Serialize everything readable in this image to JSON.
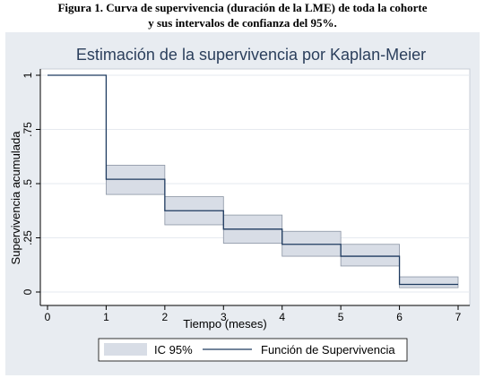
{
  "figure_caption": {
    "line1": "Figura 1. Curva de supervivencia (duración de la LME) de toda la cohorte",
    "line2": "y sus intervalos de confianza del 95%."
  },
  "colors": {
    "panel_background": "#e8ecf1",
    "plot_background": "#ffffff",
    "grid": "#e6eaef",
    "line": "#1e3a5f",
    "ci_fill": "#d8dde6",
    "ci_stroke": "#8a94a3",
    "title": "#2b3f5c"
  },
  "chart_data": {
    "type": "line",
    "step": true,
    "title": "Estimación de la supervivencia por Kaplan-Meier",
    "xlabel": "Tiempo (meses)",
    "ylabel": "Supervivencia acumulada",
    "xlim": [
      0,
      7
    ],
    "ylim": [
      0,
      1
    ],
    "xticks": [
      "0",
      "1",
      "2",
      "3",
      "4",
      "5",
      "6",
      "7"
    ],
    "yticks": [
      {
        "value": 0,
        "label": "0"
      },
      {
        "value": 0.25,
        "label": ".25"
      },
      {
        "value": 0.5,
        "label": ".5"
      },
      {
        "value": 0.75,
        "label": ".75"
      },
      {
        "value": 1,
        "label": "1"
      }
    ],
    "grid": true,
    "legend_position": "bottom",
    "series": [
      {
        "name": "Función de Supervivencia",
        "x": [
          0,
          1,
          2,
          3,
          4,
          5,
          6,
          7
        ],
        "y": [
          1.0,
          0.52,
          0.375,
          0.29,
          0.22,
          0.165,
          0.035,
          0.035
        ]
      }
    ],
    "confidence_band": {
      "name": "IC 95%",
      "x": [
        1,
        2,
        3,
        4,
        5,
        6,
        7
      ],
      "lower": [
        0.45,
        0.31,
        0.225,
        0.165,
        0.12,
        0.02,
        0.02
      ],
      "upper": [
        0.585,
        0.44,
        0.355,
        0.28,
        0.22,
        0.07,
        0.07
      ]
    }
  }
}
